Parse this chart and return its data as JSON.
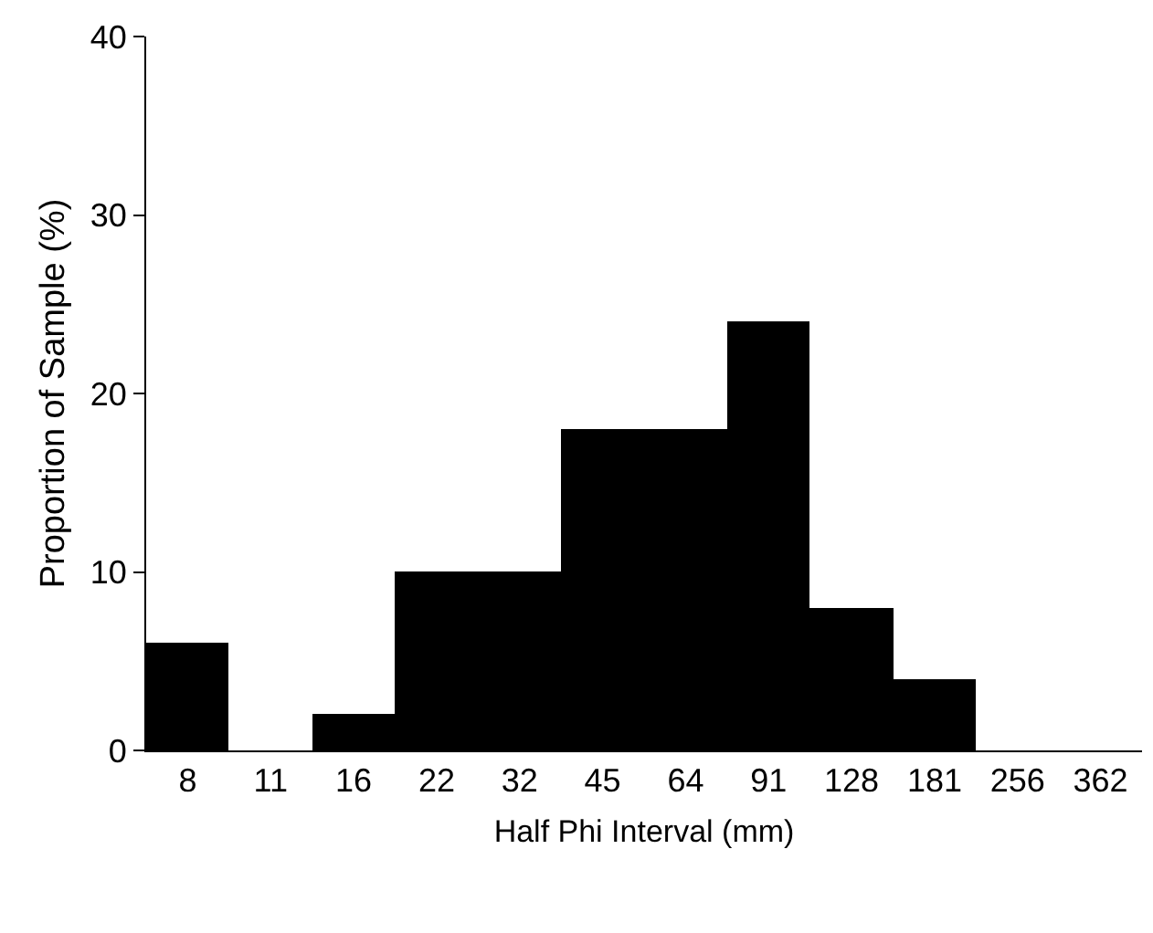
{
  "chart_data": {
    "type": "bar",
    "xlabel": "Half Phi Interval (mm)",
    "ylabel": "Proportion of Sample (%)",
    "categories": [
      "8",
      "11",
      "16",
      "22",
      "32",
      "45",
      "64",
      "91",
      "128",
      "181",
      "256",
      "362"
    ],
    "values": [
      6,
      0,
      2,
      10,
      10,
      18,
      18,
      24,
      8,
      4,
      0,
      0
    ],
    "color": "#000000",
    "ylim": [
      0,
      40
    ],
    "yticks": [
      0,
      10,
      20,
      30,
      40
    ]
  }
}
